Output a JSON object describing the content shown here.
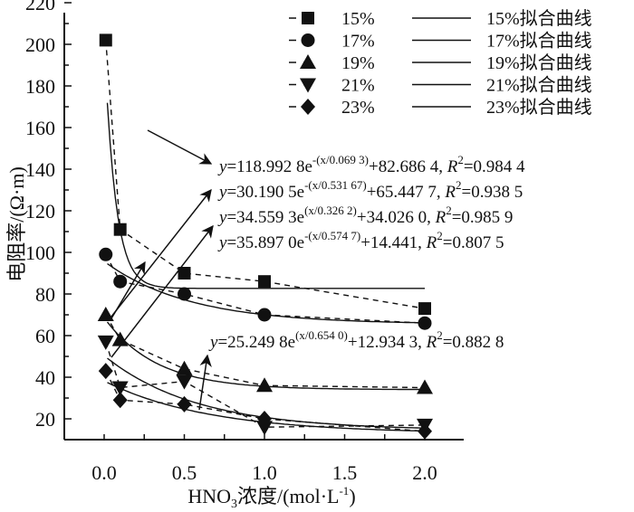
{
  "chart_data": {
    "type": "scatter",
    "xlabel": "HNO3浓度/(mol·L-1)",
    "xlabel_parts": {
      "pre": "HNO",
      "sub": "3",
      "mid": "浓度/(mol·L",
      "sup": "-1",
      "post": ")"
    },
    "ylabel": "电阻率/(Ω·m)",
    "xlim": [
      -0.25,
      2.25
    ],
    "ylim": [
      10,
      220
    ],
    "xticks": [
      "0.0",
      "0.5",
      "1.0",
      "1.5",
      "2.0"
    ],
    "xtick_values": [
      0,
      0.5,
      1.0,
      1.5,
      2.0
    ],
    "yticks": [
      "20",
      "40",
      "60",
      "80",
      "100",
      "120",
      "140",
      "160",
      "180",
      "200",
      "220"
    ],
    "ytick_values": [
      20,
      40,
      60,
      80,
      100,
      120,
      140,
      160,
      180,
      200,
      220
    ],
    "x": [
      0.01,
      0.1,
      0.5,
      1.0,
      2.0
    ],
    "series": [
      {
        "name": "15%",
        "fit_name": "15%拟合曲线",
        "marker": "square",
        "values": [
          202,
          111,
          90,
          86,
          73
        ],
        "fit": {
          "A": 118.9928,
          "t": 0.0693,
          "y0": 82.6864
        }
      },
      {
        "name": "17%",
        "fit_name": "17%拟合曲线",
        "marker": "circle",
        "values": [
          99,
          86,
          80,
          70,
          66
        ],
        "fit": {
          "A": 30.1905,
          "t": 0.53167,
          "y0": 65.4477
        }
      },
      {
        "name": "19%",
        "fit_name": "19%拟合曲线",
        "marker": "triangle-up",
        "values": [
          70,
          58,
          44,
          36,
          35
        ],
        "fit": {
          "A": 34.5593,
          "t": 0.3262,
          "y0": 34.026
        }
      },
      {
        "name": "21%",
        "fit_name": "21%拟合曲线",
        "marker": "triangle-down",
        "values": [
          57,
          35,
          38,
          16,
          17
        ],
        "fit": {
          "A": 35.897,
          "t": 0.5747,
          "y0": 14.441
        }
      },
      {
        "name": "23%",
        "fit_name": "23%拟合曲线",
        "marker": "diamond",
        "values": [
          43,
          29,
          27,
          20,
          14
        ],
        "fit": {
          "A": 25.2498,
          "t": 0.654,
          "y0": 12.9343
        }
      }
    ],
    "annotations": [
      {
        "y": "y",
        "a": "=118.992 8e",
        "exp": "-(x/0.069 3)",
        "b": "+82.686 4, ",
        "r": "R",
        "r2": "2",
        "c": "=0.984 4"
      },
      {
        "y": "y",
        "a": "=30.190 5e",
        "exp": "-(x/0.531 67)",
        "b": "+65.447 7, ",
        "r": "R",
        "r2": "2",
        "c": "=0.938 5"
      },
      {
        "y": "y",
        "a": "=34.559 3e",
        "exp": "(x/0.326 2)",
        "b": "+34.026 0, ",
        "r": "R",
        "r2": "2",
        "c": "=0.985 9"
      },
      {
        "y": "y",
        "a": "=35.897 0e",
        "exp": "-(x/0.574 7)",
        "b": "+14.441, ",
        "r": "R",
        "r2": "2",
        "c": "=0.807 5"
      },
      {
        "y": "y",
        "a": "=25.249 8e",
        "exp": "(x/0.654 0)",
        "b": "+12.934 3, ",
        "r": "R",
        "r2": "2",
        "c": "=0.882 8"
      }
    ],
    "legend": "top-right",
    "grid": false
  }
}
